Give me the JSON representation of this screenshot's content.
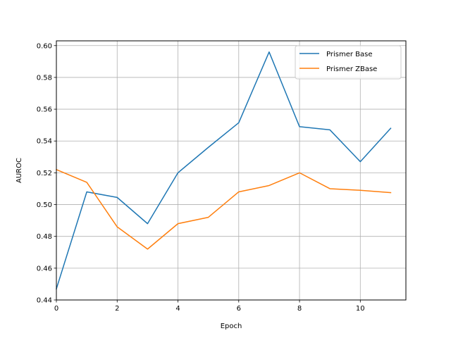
{
  "chart_data": {
    "type": "line",
    "title": "",
    "xlabel": "Epoch",
    "ylabel": "AUROC",
    "x": [
      0,
      1,
      2,
      3,
      4,
      5,
      6,
      7,
      8,
      9,
      10,
      11
    ],
    "xlim": [
      0,
      11.5
    ],
    "ylim": [
      0.44,
      0.603
    ],
    "xticks": [
      0,
      2,
      4,
      6,
      8,
      10
    ],
    "yticks": [
      0.44,
      0.46,
      0.48,
      0.5,
      0.52,
      0.54,
      0.56,
      0.58,
      0.6
    ],
    "xtick_labels": [
      "0",
      "2",
      "4",
      "6",
      "8",
      "10"
    ],
    "ytick_labels": [
      "0.44",
      "0.46",
      "0.48",
      "0.50",
      "0.52",
      "0.54",
      "0.56",
      "0.58",
      "0.60"
    ],
    "grid": true,
    "legend_position": "top-right",
    "series": [
      {
        "name": "Prismer Base",
        "color": "#1f77b4",
        "values": [
          0.447,
          0.508,
          0.5045,
          0.488,
          0.52,
          0.536,
          0.5515,
          0.596,
          0.549,
          0.547,
          0.527,
          0.548
        ]
      },
      {
        "name": "Prismer ZBase",
        "color": "#ff7f0e",
        "values": [
          0.522,
          0.514,
          0.486,
          0.472,
          0.488,
          0.492,
          0.508,
          0.512,
          0.52,
          0.51,
          0.509,
          0.5075
        ]
      }
    ]
  }
}
